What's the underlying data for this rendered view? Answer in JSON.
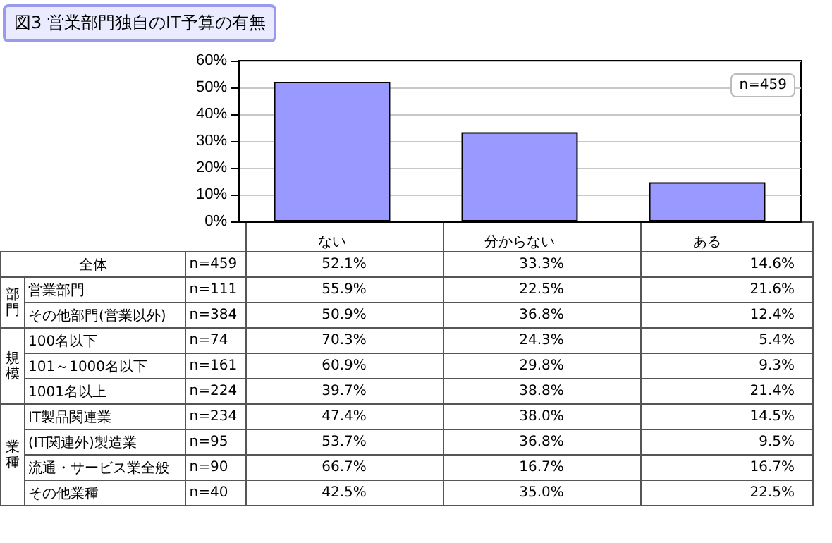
{
  "chart_data": [
    {
      "type": "bar",
      "title": "図3 営業部門独自のIT予算の有無",
      "categories": [
        "ない",
        "分からない",
        "ある"
      ],
      "values": [
        52.1,
        33.3,
        14.6
      ],
      "color": "#9999ff",
      "ylim": [
        0,
        60
      ],
      "yticks": [
        {
          "value": 0,
          "label": "0%"
        },
        {
          "value": 10,
          "label": "10%"
        },
        {
          "value": 20,
          "label": "20%"
        },
        {
          "value": 30,
          "label": "30%"
        },
        {
          "value": 40,
          "label": "40%"
        },
        {
          "value": 50,
          "label": "50%"
        },
        {
          "value": 60,
          "label": "60%"
        }
      ],
      "grid": "y",
      "value_labels": [
        "52.1%",
        "33.3%",
        "14.6%"
      ],
      "annotations": [
        "n=459",
        "全体",
        "n=459"
      ]
    },
    {
      "type": "other",
      "annotations": [
        "部門",
        "規模",
        "業種"
      ],
      "y_categories": [
        "営業部門",
        "その他部門(営業以外)",
        "100名以下",
        "101～1000名以下",
        "1001名以上",
        "IT製品関連業",
        "(IT関連外)製造業",
        "流通・サービス業全般",
        "その他業種"
      ],
      "y2_categories": [
        "n=111",
        "n=384",
        "n=74",
        "n=161",
        "n=224",
        "n=234",
        "n=95",
        "n=90",
        "n=40"
      ],
      "cell_labels": [
        [
          "55.9%",
          "22.5%",
          "21.6%"
        ],
        [
          "50.9%",
          "36.8%",
          "12.4%"
        ],
        [
          "70.3%",
          "24.3%",
          "5.4%"
        ],
        [
          "60.9%",
          "29.8%",
          "9.3%"
        ],
        [
          "39.7%",
          "38.8%",
          "21.4%"
        ],
        [
          "47.4%",
          "38.0%",
          "14.5%"
        ],
        [
          "53.7%",
          "36.8%",
          "9.5%"
        ],
        [
          "66.7%",
          "16.7%",
          "16.7%"
        ],
        [
          "42.5%",
          "35.0%",
          "22.5%"
        ]
      ]
    }
  ]
}
